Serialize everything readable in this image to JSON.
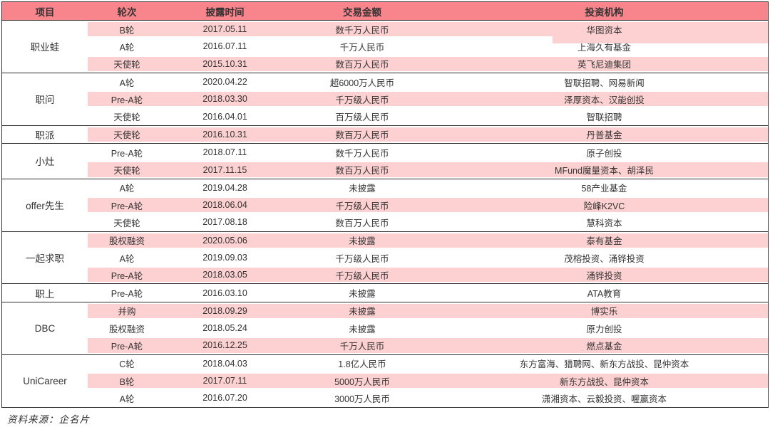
{
  "table": {
    "columns": [
      "项目",
      "轮次",
      "披露时间",
      "交易金额",
      "投资机构"
    ],
    "groups": [
      {
        "project": "职业蛙",
        "rows": [
          {
            "round": "B轮",
            "date": "2017.05.11",
            "amount": "数千万人民币",
            "investors": "华图资本"
          },
          {
            "round": "A轮",
            "date": "2016.07.11",
            "amount": "千万人民币",
            "investors": "上海久有基金"
          },
          {
            "round": "天使轮",
            "date": "2015.10.31",
            "amount": "数百万人民币",
            "investors": "英飞尼迪集团"
          }
        ]
      },
      {
        "project": "职问",
        "rows": [
          {
            "round": "A轮",
            "date": "2020.04.22",
            "amount": "超6000万人民币",
            "investors": "智联招聘、网易新闻"
          },
          {
            "round": "Pre-A轮",
            "date": "2018.03.30",
            "amount": "千万级人民币",
            "investors": "泽厚资本、汉能创投"
          },
          {
            "round": "天使轮",
            "date": "2016.04.01",
            "amount": "百万级人民币",
            "investors": "智联招聘"
          }
        ]
      },
      {
        "project": "职派",
        "rows": [
          {
            "round": "天使轮",
            "date": "2016.10.31",
            "amount": "数百万人民币",
            "investors": "丹普基金"
          }
        ]
      },
      {
        "project": "小灶",
        "rows": [
          {
            "round": "Pre-A轮",
            "date": "2018.07.11",
            "amount": "数千万人民币",
            "investors": "原子创投"
          },
          {
            "round": "天使轮",
            "date": "2017.11.15",
            "amount": "数百万人民币",
            "investors": "MFund魔量资本、胡泽民"
          }
        ]
      },
      {
        "project": "offer先生",
        "rows": [
          {
            "round": "A轮",
            "date": "2019.04.28",
            "amount": "未披露",
            "investors": "58产业基金"
          },
          {
            "round": "Pre-A轮",
            "date": "2018.06.04",
            "amount": "千万级人民币",
            "investors": "险峰K2VC"
          },
          {
            "round": "天使轮",
            "date": "2017.08.18",
            "amount": "数百万人民币",
            "investors": "慧科资本"
          }
        ]
      },
      {
        "project": "一起求职",
        "rows": [
          {
            "round": "股权融资",
            "date": "2020.05.06",
            "amount": "未披露",
            "investors": "泰有基金"
          },
          {
            "round": "A轮",
            "date": "2019.09.03",
            "amount": "千万级人民币",
            "investors": "茂榕投资、涌铧投资"
          },
          {
            "round": "Pre-A轮",
            "date": "2018.03.05",
            "amount": "千万级人民币",
            "investors": "涌铧投资"
          }
        ]
      },
      {
        "project": "职上",
        "rows": [
          {
            "round": "Pre-A轮",
            "date": "2016.03.10",
            "amount": "未披露",
            "investors": "ATA教育"
          }
        ]
      },
      {
        "project": "DBC",
        "rows": [
          {
            "round": "并购",
            "date": "2018.09.29",
            "amount": "未披露",
            "investors": "博实乐"
          },
          {
            "round": "股权融资",
            "date": "2018.05.24",
            "amount": "未披露",
            "investors": "原力创投"
          },
          {
            "round": "Pre-A轮",
            "date": "2016.12.25",
            "amount": "千万人民币",
            "investors": "燃点基金"
          }
        ]
      },
      {
        "project": "UniCareer",
        "rows": [
          {
            "round": "C轮",
            "date": "2018.04.03",
            "amount": "1.8亿人民币",
            "investors": "东方富海、猎聘网、新东方战投、昆仲资本"
          },
          {
            "round": "B轮",
            "date": "2017.07.11",
            "amount": "5000万人民币",
            "investors": "新东方战投、昆仲资本"
          },
          {
            "round": "A轮",
            "date": "2016.07.20",
            "amount": "3000万人民币",
            "investors": "潇湘资本、云毅投资、喔赢资本"
          }
        ]
      }
    ]
  },
  "footer": {
    "source": "资料来源：企名片"
  },
  "colors": {
    "header_bg": "#f9858c",
    "row_pink": "#fdd0d1",
    "border_dark": "#2e2e2e",
    "text": "#333333"
  }
}
